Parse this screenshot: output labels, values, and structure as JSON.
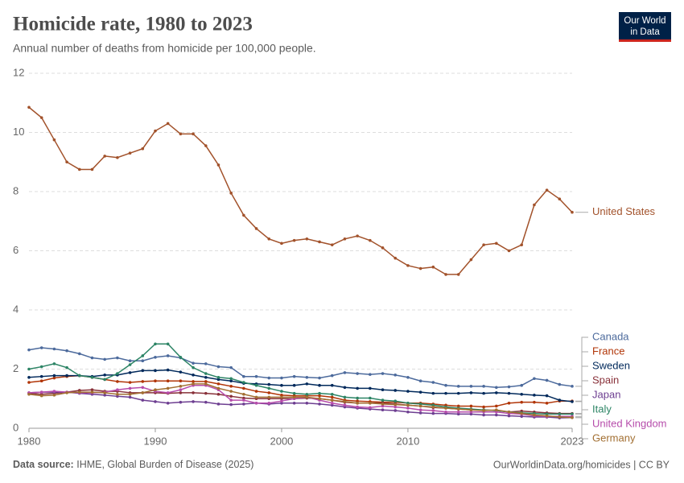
{
  "header": {
    "title": "Homicide rate, 1980 to 2023",
    "subtitle": "Annual number of deaths from homicide per 100,000 people.",
    "logo": [
      "Our World",
      "in Data"
    ]
  },
  "footer": {
    "source_label": "Data source:",
    "source": "IHME, Global Burden of Disease (2025)",
    "link": "OurWorldinData.org/homicides | CC BY"
  },
  "chart_data": {
    "type": "line",
    "x": [
      1980,
      1981,
      1982,
      1983,
      1984,
      1985,
      1986,
      1987,
      1988,
      1989,
      1990,
      1991,
      1992,
      1993,
      1994,
      1995,
      1996,
      1997,
      1998,
      1999,
      2000,
      2001,
      2002,
      2003,
      2004,
      2005,
      2006,
      2007,
      2008,
      2009,
      2010,
      2011,
      2012,
      2013,
      2014,
      2015,
      2016,
      2017,
      2018,
      2019,
      2020,
      2021,
      2022,
      2023
    ],
    "xlim": [
      1980,
      2023
    ],
    "xticks": [
      1980,
      1990,
      2000,
      2010,
      2023
    ],
    "ylim": [
      0,
      12
    ],
    "yticks": [
      0,
      2,
      4,
      6,
      8,
      10,
      12
    ],
    "grid": true,
    "series": [
      {
        "name": "United States",
        "color": "#a2522b",
        "values": [
          10.85,
          10.5,
          9.75,
          9.0,
          8.75,
          8.75,
          9.2,
          9.15,
          9.3,
          9.45,
          10.05,
          10.3,
          9.95,
          9.95,
          9.55,
          8.9,
          7.95,
          7.2,
          6.75,
          6.4,
          6.25,
          6.35,
          6.4,
          6.3,
          6.2,
          6.4,
          6.5,
          6.35,
          6.1,
          5.75,
          5.5,
          5.4,
          5.45,
          5.2,
          5.2,
          5.7,
          6.2,
          6.25,
          6.0,
          6.2,
          7.55,
          8.05,
          7.75,
          7.3
        ]
      },
      {
        "name": "Canada",
        "color": "#4c6a9c",
        "values": [
          2.65,
          2.72,
          2.68,
          2.62,
          2.52,
          2.38,
          2.33,
          2.38,
          2.28,
          2.28,
          2.4,
          2.45,
          2.38,
          2.2,
          2.18,
          2.08,
          2.05,
          1.75,
          1.75,
          1.7,
          1.7,
          1.75,
          1.72,
          1.7,
          1.78,
          1.88,
          1.85,
          1.82,
          1.85,
          1.8,
          1.72,
          1.6,
          1.55,
          1.45,
          1.42,
          1.42,
          1.42,
          1.38,
          1.4,
          1.45,
          1.68,
          1.62,
          1.48,
          1.42
        ]
      },
      {
        "name": "France",
        "color": "#b13507",
        "values": [
          1.55,
          1.6,
          1.7,
          1.75,
          1.78,
          1.72,
          1.65,
          1.58,
          1.55,
          1.58,
          1.6,
          1.6,
          1.6,
          1.58,
          1.58,
          1.5,
          1.42,
          1.35,
          1.25,
          1.2,
          1.12,
          1.1,
          1.1,
          1.1,
          1.05,
          0.95,
          0.92,
          0.9,
          0.88,
          0.88,
          0.85,
          0.85,
          0.82,
          0.78,
          0.75,
          0.75,
          0.72,
          0.75,
          0.85,
          0.88,
          0.88,
          0.85,
          0.92,
          0.92
        ]
      },
      {
        "name": "Sweden",
        "color": "#00295b",
        "values": [
          1.72,
          1.75,
          1.78,
          1.78,
          1.78,
          1.75,
          1.8,
          1.8,
          1.88,
          1.95,
          1.95,
          1.97,
          1.9,
          1.8,
          1.72,
          1.65,
          1.6,
          1.52,
          1.5,
          1.48,
          1.45,
          1.45,
          1.5,
          1.45,
          1.45,
          1.38,
          1.35,
          1.35,
          1.3,
          1.28,
          1.25,
          1.22,
          1.18,
          1.18,
          1.18,
          1.2,
          1.18,
          1.2,
          1.18,
          1.15,
          1.12,
          1.1,
          0.95,
          0.9
        ]
      },
      {
        "name": "Spain",
        "color": "#883039",
        "values": [
          1.18,
          1.15,
          1.18,
          1.22,
          1.28,
          1.3,
          1.25,
          1.25,
          1.2,
          1.2,
          1.2,
          1.18,
          1.2,
          1.2,
          1.18,
          1.15,
          1.08,
          1.02,
          1.0,
          1.0,
          1.0,
          1.0,
          1.02,
          1.0,
          0.95,
          0.88,
          0.85,
          0.85,
          0.85,
          0.82,
          0.78,
          0.75,
          0.7,
          0.68,
          0.65,
          0.62,
          0.62,
          0.6,
          0.55,
          0.58,
          0.55,
          0.52,
          0.5,
          0.5
        ]
      },
      {
        "name": "Japan",
        "color": "#6d3e91",
        "values": [
          1.2,
          1.22,
          1.22,
          1.22,
          1.18,
          1.15,
          1.12,
          1.08,
          1.05,
          0.95,
          0.9,
          0.85,
          0.88,
          0.9,
          0.88,
          0.82,
          0.8,
          0.82,
          0.85,
          0.82,
          0.85,
          0.85,
          0.85,
          0.82,
          0.78,
          0.72,
          0.68,
          0.65,
          0.62,
          0.6,
          0.55,
          0.52,
          0.5,
          0.5,
          0.48,
          0.48,
          0.45,
          0.45,
          0.42,
          0.4,
          0.38,
          0.38,
          0.35,
          0.36
        ]
      },
      {
        "name": "Italy",
        "color": "#2c8465",
        "values": [
          2.0,
          2.08,
          2.18,
          2.05,
          1.78,
          1.72,
          1.65,
          1.85,
          2.15,
          2.45,
          2.85,
          2.85,
          2.4,
          2.05,
          1.85,
          1.72,
          1.68,
          1.55,
          1.45,
          1.35,
          1.25,
          1.18,
          1.15,
          1.18,
          1.15,
          1.05,
          1.02,
          1.02,
          0.95,
          0.92,
          0.85,
          0.82,
          0.78,
          0.72,
          0.68,
          0.65,
          0.62,
          0.6,
          0.55,
          0.52,
          0.5,
          0.48,
          0.48,
          0.48
        ]
      },
      {
        "name": "United Kingdom",
        "color": "#b64cab",
        "values": [
          1.2,
          1.22,
          1.25,
          1.22,
          1.2,
          1.2,
          1.22,
          1.3,
          1.35,
          1.38,
          1.25,
          1.2,
          1.3,
          1.45,
          1.45,
          1.3,
          0.95,
          0.95,
          0.85,
          0.85,
          0.92,
          1.0,
          1.05,
          0.95,
          0.85,
          0.78,
          0.72,
          0.7,
          0.75,
          0.72,
          0.68,
          0.62,
          0.6,
          0.55,
          0.55,
          0.55,
          0.55,
          0.55,
          0.5,
          0.48,
          0.42,
          0.4,
          0.4,
          0.4
        ]
      },
      {
        "name": "Germany",
        "color": "#a26f32",
        "values": [
          1.15,
          1.1,
          1.12,
          1.2,
          1.22,
          1.22,
          1.2,
          1.15,
          1.15,
          1.2,
          1.3,
          1.35,
          1.42,
          1.5,
          1.5,
          1.35,
          1.25,
          1.15,
          1.05,
          1.05,
          1.05,
          1.05,
          1.05,
          1.0,
          0.95,
          0.9,
          0.85,
          0.85,
          0.82,
          0.8,
          0.78,
          0.75,
          0.72,
          0.68,
          0.65,
          0.62,
          0.6,
          0.62,
          0.55,
          0.5,
          0.45,
          0.42,
          0.38,
          0.36
        ]
      }
    ]
  }
}
